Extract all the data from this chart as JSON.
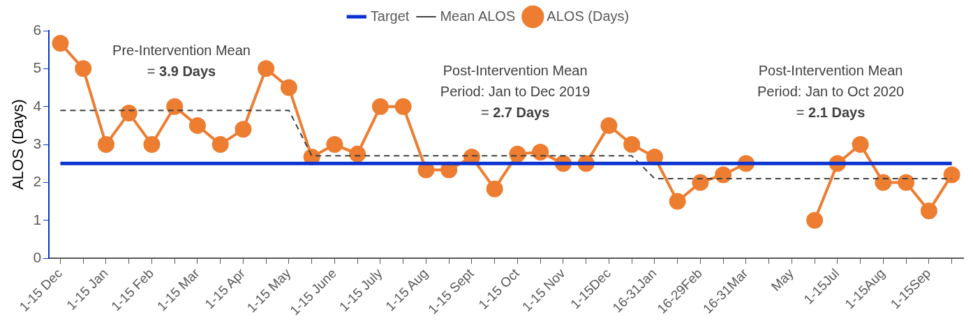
{
  "chart_data": {
    "type": "line",
    "ylabel": "ALOS (Days)",
    "categories": [
      "1-15 Dec",
      null,
      "1-15 Jan",
      null,
      "1-15 Feb",
      null,
      "1-15 Mar",
      null,
      "1-15 Apr",
      null,
      "1-15 May",
      null,
      "1-15 June",
      null,
      "1-15 July",
      null,
      "1-15 Aug",
      null,
      "1-15 Sept",
      null,
      "1-15 Oct",
      null,
      "1-15 Nov",
      null,
      "1-15Dec",
      null,
      "16-31Jan",
      null,
      "16-29Feb",
      null,
      "16-31Mar",
      null,
      "May",
      null,
      "1-15Jul",
      null,
      "1-15Aug",
      null,
      "1-15Sep",
      null
    ],
    "series": [
      {
        "name": "ALOS (Days)",
        "color": "#ed7d31",
        "marker": "circle",
        "line_style": "solid",
        "values": [
          5.67,
          5.0,
          3.0,
          3.83,
          3.0,
          4.0,
          3.5,
          3.0,
          3.4,
          5.0,
          4.5,
          2.67,
          3.0,
          2.75,
          4.0,
          4.0,
          2.33,
          2.33,
          2.67,
          1.83,
          2.75,
          2.8,
          2.5,
          2.5,
          3.5,
          3.0,
          2.67,
          1.5,
          2.0,
          2.2,
          2.5,
          null,
          null,
          1.0,
          2.5,
          3.0,
          2.0,
          2.0,
          1.25,
          2.2
        ]
      },
      {
        "name": "Mean ALOS",
        "color": "#404040",
        "marker": "none",
        "line_style": "dashed",
        "values": [
          3.9,
          3.9,
          3.9,
          3.9,
          3.9,
          3.9,
          3.9,
          3.9,
          3.9,
          3.9,
          3.9,
          2.7,
          2.7,
          2.7,
          2.7,
          2.7,
          2.7,
          2.7,
          2.7,
          2.7,
          2.7,
          2.7,
          2.7,
          2.7,
          2.7,
          2.7,
          2.1,
          2.1,
          2.1,
          2.1,
          2.1,
          2.1,
          2.1,
          2.1,
          2.1,
          2.1,
          2.1,
          2.1,
          2.1,
          2.1
        ]
      },
      {
        "name": "Target",
        "color": "#0a32d0",
        "marker": "none",
        "line_style": "solid",
        "values": [
          2.5,
          2.5,
          2.5,
          2.5,
          2.5,
          2.5,
          2.5,
          2.5,
          2.5,
          2.5,
          2.5,
          2.5,
          2.5,
          2.5,
          2.5,
          2.5,
          2.5,
          2.5,
          2.5,
          2.5,
          2.5,
          2.5,
          2.5,
          2.5,
          2.5,
          2.5,
          2.5,
          2.5,
          2.5,
          2.5,
          2.5,
          2.5,
          2.5,
          2.5,
          2.5,
          2.5,
          2.5,
          2.5,
          2.5,
          2.5
        ]
      }
    ],
    "ylim": [
      0,
      6
    ],
    "yticks": [
      0,
      1,
      2,
      3,
      4,
      5,
      6
    ],
    "grid": false,
    "legend": "top",
    "annotations": [
      "Pre-Intervention Mean\n= 3.9 Days",
      "Post-Intervention Mean\nPeriod: Jan to Dec 2019\n= 2.7 Days",
      "Post-Intervention Mean\nPeriod: Jan to Oct 2020\n= 2.1 Days"
    ]
  }
}
